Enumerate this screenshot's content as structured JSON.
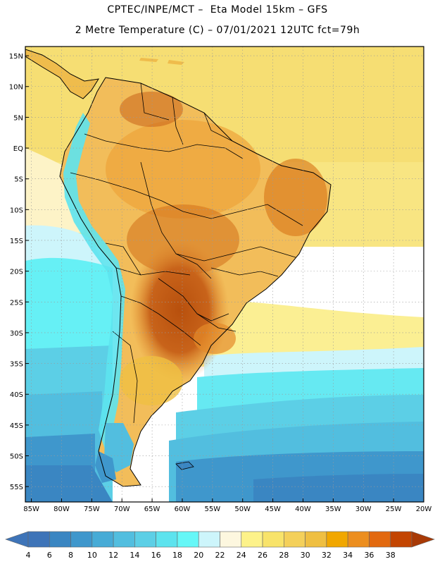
{
  "header": {
    "title_line1": "CPTEC/INPE/MCT –  Eta Model 15km – GFS",
    "title_line2": "2 Metre Temperature (C) – 07/01/2021 12UTC fct=79h"
  },
  "map": {
    "lat_labels": [
      "15N",
      "10N",
      "5N",
      "EQ",
      "5S",
      "10S",
      "15S",
      "20S",
      "25S",
      "30S",
      "35S",
      "40S",
      "45S",
      "50S",
      "55S"
    ],
    "lon_labels": [
      "85W",
      "80W",
      "75W",
      "70W",
      "65W",
      "60W",
      "55W",
      "50W",
      "45W",
      "40W",
      "35W",
      "30W",
      "25W",
      "20W"
    ],
    "lat_range": [
      -57.5,
      16.5
    ],
    "lon_range": [
      -86,
      -20
    ]
  },
  "legend": {
    "units": "C",
    "labels": [
      "4",
      "6",
      "8",
      "10",
      "12",
      "14",
      "16",
      "18",
      "20",
      "22",
      "24",
      "26",
      "28",
      "30",
      "32",
      "34",
      "36",
      "38"
    ],
    "colors": [
      "#3e74b8",
      "#3a86c2",
      "#3f97cc",
      "#47abd6",
      "#52bedf",
      "#5ccfe6",
      "#5de3ee",
      "#66f7f7",
      "#cdf5fb",
      "#fdf7df",
      "#fdf28a",
      "#f8e36a",
      "#f4d05a",
      "#efbf42",
      "#f1a700",
      "#ec8e1f",
      "#e2690f",
      "#c34501",
      "#a83a06"
    ]
  }
}
